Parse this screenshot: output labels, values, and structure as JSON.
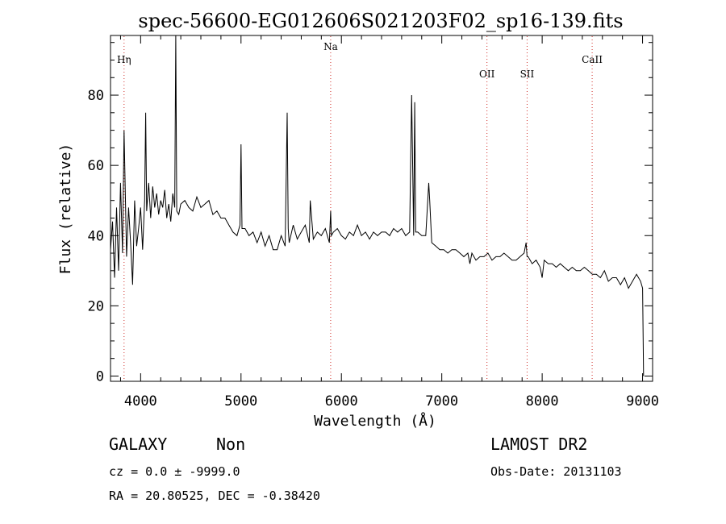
{
  "chart_data": {
    "type": "line",
    "title": "spec-56600-EG012606S021203F02_sp16-139.fits",
    "xlabel": "Wavelength (Å)",
    "ylabel": "Flux (relative)",
    "xlim": [
      3700,
      9100
    ],
    "ylim": [
      -1.5,
      97
    ],
    "xticks": [
      4000,
      5000,
      6000,
      7000,
      8000,
      9000
    ],
    "yticks": [
      0,
      20,
      40,
      60,
      80
    ],
    "grid": false,
    "lines": [
      {
        "label": "Hη",
        "x": 3835
      },
      {
        "label": "Na",
        "x": 5893
      },
      {
        "label": "OII",
        "x": 7450
      },
      {
        "label": "SII",
        "x": 7850
      },
      {
        "label": "CaII",
        "x": 8498
      }
    ],
    "series": [
      {
        "x": [
          3700,
          3720,
          3740,
          3760,
          3780,
          3800,
          3820,
          3835,
          3860,
          3880,
          3900,
          3920,
          3940,
          3960,
          3980,
          4000,
          4020,
          4040,
          4050,
          4060,
          4080,
          4100,
          4120,
          4140,
          4160,
          4180,
          4200,
          4220,
          4240,
          4260,
          4280,
          4300,
          4320,
          4340,
          4350,
          4360,
          4380,
          4400,
          4440,
          4480,
          4520,
          4560,
          4600,
          4640,
          4680,
          4720,
          4760,
          4800,
          4840,
          4880,
          4920,
          4960,
          4990,
          5000,
          5010,
          5040,
          5080,
          5120,
          5160,
          5200,
          5240,
          5280,
          5320,
          5360,
          5400,
          5440,
          5460,
          5470,
          5480,
          5520,
          5560,
          5600,
          5640,
          5680,
          5690,
          5720,
          5760,
          5800,
          5840,
          5880,
          5893,
          5900,
          5920,
          5960,
          6000,
          6040,
          6080,
          6120,
          6160,
          6200,
          6240,
          6280,
          6320,
          6360,
          6400,
          6440,
          6480,
          6520,
          6560,
          6600,
          6640,
          6680,
          6700,
          6720,
          6730,
          6740,
          6760,
          6800,
          6840,
          6870,
          6880,
          6900,
          6940,
          6980,
          7020,
          7060,
          7100,
          7140,
          7180,
          7220,
          7260,
          7280,
          7300,
          7340,
          7380,
          7420,
          7460,
          7500,
          7540,
          7580,
          7620,
          7660,
          7700,
          7740,
          7780,
          7820,
          7840,
          7850,
          7860,
          7900,
          7940,
          7980,
          8000,
          8020,
          8060,
          8100,
          8140,
          8180,
          8220,
          8260,
          8300,
          8340,
          8380,
          8420,
          8460,
          8500,
          8540,
          8580,
          8620,
          8660,
          8700,
          8740,
          8780,
          8820,
          8860,
          8900,
          8940,
          8980,
          9000,
          9010
        ],
        "values": [
          36,
          44,
          28,
          48,
          30,
          55,
          35,
          70,
          34,
          48,
          38,
          26,
          50,
          37,
          42,
          48,
          36,
          50,
          75,
          47,
          55,
          45,
          54,
          48,
          52,
          46,
          50,
          48,
          53,
          45,
          49,
          44,
          52,
          48,
          97,
          47,
          46,
          49,
          50,
          48,
          47,
          51,
          48,
          49,
          50,
          46,
          47,
          45,
          45,
          43,
          41,
          40,
          43,
          66,
          42,
          42,
          40,
          41,
          38,
          41,
          37,
          40,
          36,
          36,
          40,
          37,
          75,
          42,
          38,
          43,
          39,
          41,
          43,
          38,
          50,
          39,
          41,
          40,
          42,
          38,
          47,
          40,
          41,
          42,
          40,
          39,
          41,
          40,
          43,
          40,
          41,
          39,
          41,
          40,
          41,
          41,
          40,
          42,
          41,
          42,
          40,
          41,
          80,
          40,
          78,
          41,
          41,
          40,
          40,
          55,
          50,
          38,
          37,
          36,
          36,
          35,
          36,
          36,
          35,
          34,
          35,
          32,
          35,
          33,
          34,
          34,
          35,
          33,
          34,
          34,
          35,
          34,
          33,
          33,
          34,
          35,
          38,
          34,
          34,
          32,
          33,
          31,
          28,
          33,
          32,
          32,
          31,
          32,
          31,
          30,
          31,
          30,
          30,
          31,
          30,
          29,
          29,
          28,
          30,
          27,
          28,
          28,
          26,
          28,
          25,
          27,
          29,
          27,
          25,
          0
        ]
      }
    ]
  },
  "footer": {
    "object_class": "GALAXY",
    "subclass": "Non",
    "survey": "LAMOST DR2",
    "cz": "cz = 0.0 ± -9999.0",
    "obs_date": "Obs-Date: 20131103",
    "coords": "RA =  20.80525, DEC =  -0.38420"
  }
}
